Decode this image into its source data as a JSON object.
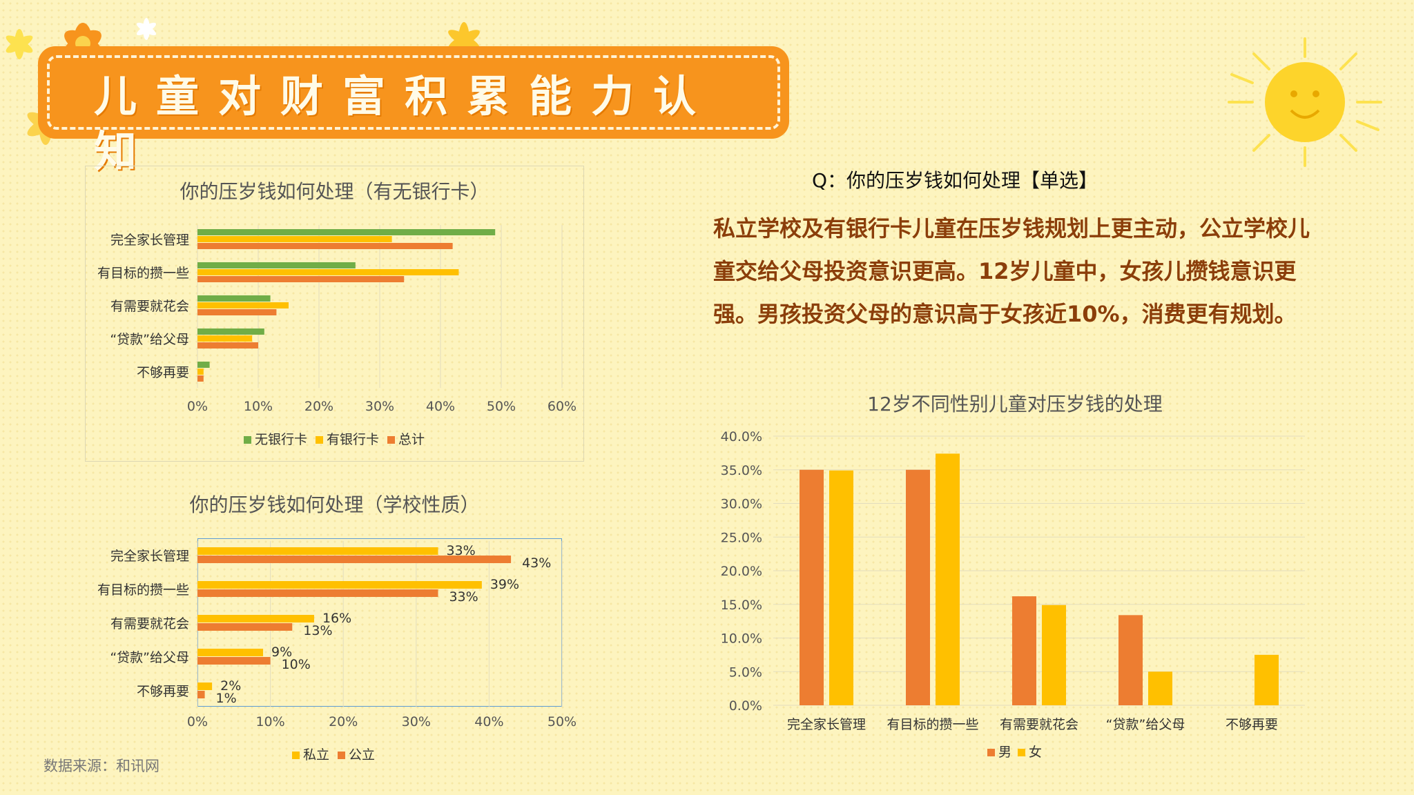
{
  "title": "儿童对财富积累能力认知",
  "question": "Q：你的压岁钱如何处理【单选】",
  "summary": "私立学校及有银行卡儿童在压岁钱规划上更主动，公立学校儿童交给父母投资意识更高。12岁儿童中，女孩儿攒钱意识更强。男孩投资父母的意识高于女孩近10%，消费更有规划。",
  "source": "数据来源：和讯网",
  "colors": {
    "green": "#70ad47",
    "yellow": "#ffc000",
    "orange": "#ed7d31",
    "banner": "#f7941d",
    "summary_text": "#8b3e0a"
  },
  "chart_data": [
    {
      "type": "bar",
      "orientation": "horizontal",
      "title": "你的压岁钱如何处理（有无银行卡）",
      "categories": [
        "完全家长管理",
        "有目标的攒一些",
        "有需要就花会",
        "“贷款”给父母",
        "不够再要"
      ],
      "series": [
        {
          "name": "无银行卡",
          "color": "#70ad47",
          "values": [
            49,
            26,
            12,
            11,
            2
          ]
        },
        {
          "name": "有银行卡",
          "color": "#ffc000",
          "values": [
            32,
            43,
            15,
            9,
            1
          ]
        },
        {
          "name": "总计",
          "color": "#ed7d31",
          "values": [
            42,
            34,
            13,
            10,
            1
          ]
        }
      ],
      "xlim": [
        0,
        60
      ],
      "xticks": [
        "0%",
        "10%",
        "20%",
        "30%",
        "40%",
        "50%",
        "60%"
      ],
      "legend": "bottom",
      "grid": true
    },
    {
      "type": "bar",
      "orientation": "horizontal",
      "title": "你的压岁钱如何处理（学校性质）",
      "categories": [
        "完全家长管理",
        "有目标的攒一些",
        "有需要就花会",
        "“贷款”给父母",
        "不够再要"
      ],
      "series": [
        {
          "name": "私立",
          "color": "#ffc000",
          "values": [
            33,
            39,
            16,
            9,
            2
          ],
          "labels": [
            "33%",
            "39%",
            "16%",
            "9%",
            "2%"
          ]
        },
        {
          "name": "公立",
          "color": "#ed7d31",
          "values": [
            43,
            33,
            13,
            10,
            1
          ],
          "labels": [
            "43%",
            "33%",
            "13%",
            "10%",
            "1%"
          ]
        }
      ],
      "xlim": [
        0,
        50
      ],
      "xticks": [
        "0%",
        "10%",
        "20%",
        "30%",
        "40%",
        "50%"
      ],
      "legend": "bottom",
      "grid": true
    },
    {
      "type": "bar",
      "orientation": "vertical",
      "title": "12岁不同性别儿童对压岁钱的处理",
      "categories": [
        "完全家长管理",
        "有目标的攒一些",
        "有需要就花会",
        "“贷款”给父母",
        "不够再要"
      ],
      "series": [
        {
          "name": "男",
          "color": "#ed7d31",
          "values": [
            35.0,
            35.0,
            16.2,
            13.4,
            0
          ]
        },
        {
          "name": "女",
          "color": "#ffc000",
          "values": [
            34.9,
            37.4,
            14.9,
            5.0,
            7.5
          ]
        }
      ],
      "ylim": [
        0,
        40
      ],
      "yticks": [
        "0.0%",
        "5.0%",
        "10.0%",
        "15.0%",
        "20.0%",
        "25.0%",
        "30.0%",
        "35.0%",
        "40.0%"
      ],
      "legend": "bottom",
      "grid": true
    }
  ]
}
